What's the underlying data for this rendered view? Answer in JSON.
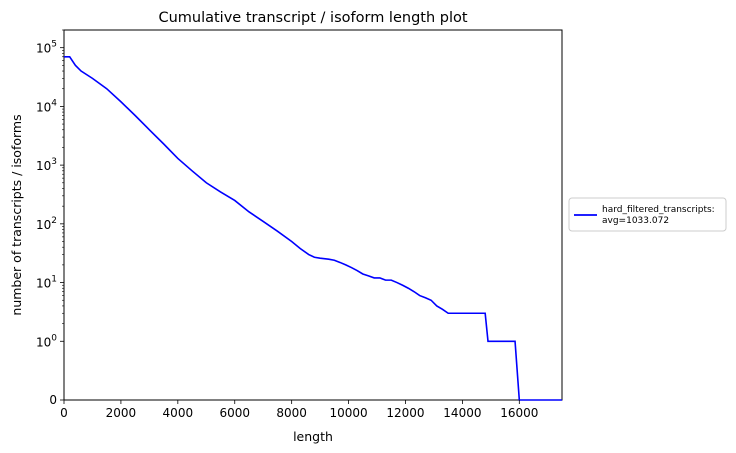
{
  "chart_data": {
    "type": "line",
    "title": "Cumulative transcript / isoform length plot",
    "xlabel": "length",
    "ylabel": "number of transcripts / isoforms",
    "xlim": [
      0,
      17500
    ],
    "y_scale": "symlog",
    "ylim": [
      0,
      200000
    ],
    "x_ticks": [
      "0",
      "2000",
      "4000",
      "6000",
      "8000",
      "10000",
      "12000",
      "14000",
      "16000"
    ],
    "y_ticks": [
      {
        "value": 0,
        "base": "0",
        "exp": ""
      },
      {
        "value": 1,
        "base": "10",
        "exp": "0"
      },
      {
        "value": 10,
        "base": "10",
        "exp": "1"
      },
      {
        "value": 100,
        "base": "10",
        "exp": "2"
      },
      {
        "value": 1000,
        "base": "10",
        "exp": "3"
      },
      {
        "value": 10000,
        "base": "10",
        "exp": "4"
      },
      {
        "value": 100000,
        "base": "10",
        "exp": "5"
      }
    ],
    "grid": false,
    "legend_position": "outside-right",
    "series": [
      {
        "name": "hard_filtered_transcripts:",
        "name_line2": "avg=1033.072",
        "color": "#0000ff",
        "x": [
          0,
          200,
          400,
          600,
          1000,
          1500,
          2000,
          2500,
          3000,
          3500,
          4000,
          4500,
          5000,
          5500,
          6000,
          6500,
          7000,
          7500,
          8000,
          8300,
          8600,
          8800,
          9000,
          9300,
          9500,
          9700,
          9900,
          10100,
          10300,
          10500,
          10700,
          10900,
          11100,
          11300,
          11500,
          11700,
          11900,
          12100,
          12300,
          12500,
          12700,
          12900,
          13100,
          13300,
          13500,
          14000,
          14500,
          14800,
          14900,
          15000,
          15500,
          15850,
          16000,
          16500,
          17000,
          17500
        ],
        "y": [
          70000,
          70000,
          50000,
          40000,
          30000,
          20000,
          12000,
          7000,
          4000,
          2300,
          1300,
          800,
          500,
          350,
          250,
          160,
          110,
          75,
          50,
          38,
          30,
          27,
          26,
          25,
          24,
          22,
          20,
          18,
          16,
          14,
          13,
          12,
          12,
          11,
          11,
          10,
          9,
          8,
          7,
          6,
          5.5,
          5,
          4,
          3.5,
          3,
          3,
          3,
          3,
          1,
          1,
          1,
          1,
          0,
          0,
          0,
          0
        ]
      }
    ]
  }
}
